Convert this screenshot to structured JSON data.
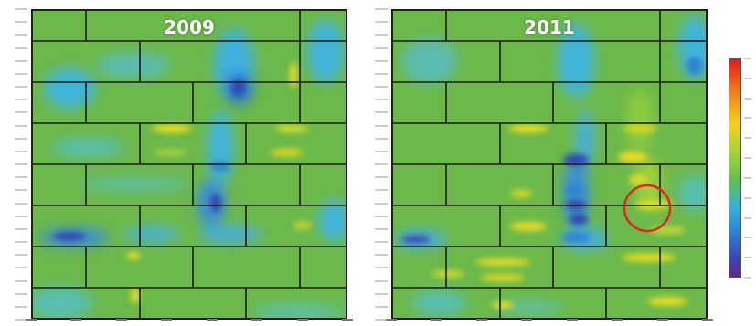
{
  "panels": [
    {
      "title": "2009"
    },
    {
      "title": "2011"
    }
  ],
  "colors": {
    "background_green": "#6cb84a",
    "highlight_circle": "#e0271f",
    "grid_line": "#1a1a1a"
  },
  "colorbar": {
    "scale": [
      "red",
      "orange",
      "yellow",
      "green",
      "cyan",
      "blue",
      "purple"
    ]
  }
}
